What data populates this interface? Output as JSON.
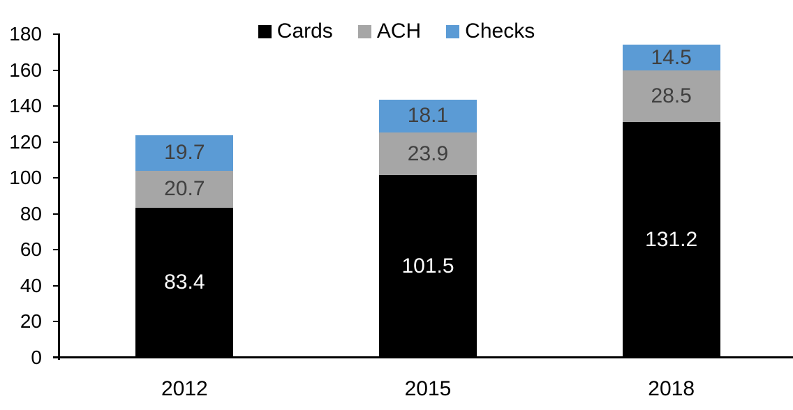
{
  "chart_data": {
    "type": "bar",
    "stacked": true,
    "title": "",
    "xlabel": "",
    "ylabel": "",
    "categories": [
      "2012",
      "2015",
      "2018"
    ],
    "series": [
      {
        "name": "Cards",
        "values": [
          83.4,
          101.5,
          131.2
        ],
        "color": "#000000",
        "label_color": "#FFFFFF"
      },
      {
        "name": "ACH",
        "values": [
          20.7,
          23.9,
          28.5
        ],
        "color": "#A6A6A6",
        "label_color": "#404040"
      },
      {
        "name": "Checks",
        "values": [
          19.7,
          18.1,
          14.5
        ],
        "color": "#5B9BD5",
        "label_color": "#404040"
      }
    ],
    "yticks": [
      "0",
      "20",
      "40",
      "60",
      "80",
      "100",
      "120",
      "140",
      "160",
      "180"
    ],
    "ylim": [
      0,
      180
    ],
    "grid": false,
    "legend_position": "top",
    "axis_color": "#000000",
    "background_color": "#FFFFFF"
  }
}
